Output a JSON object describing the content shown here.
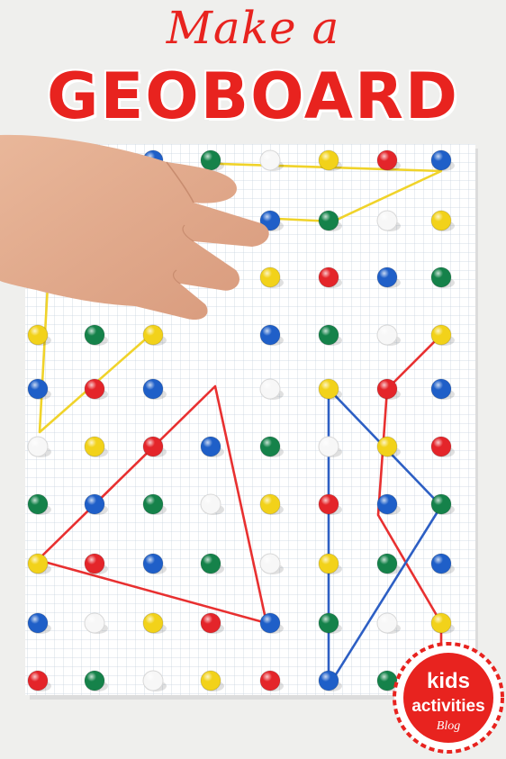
{
  "title": {
    "line1": "Make a",
    "line2": "GEOBOARD"
  },
  "logo": {
    "line1": "kids",
    "line2": "activities",
    "line3": "Blog"
  },
  "colors": {
    "title_red": "#e8231f",
    "peg_red": "#e4252a",
    "peg_blue": "#1f5fc8",
    "peg_green": "#15824a",
    "peg_yellow": "#f2d21a",
    "peg_white": "#f7f7f7",
    "band_yellow": "#f0d32a",
    "band_red": "#e83030",
    "band_blue": "#2d5fc4"
  }
}
